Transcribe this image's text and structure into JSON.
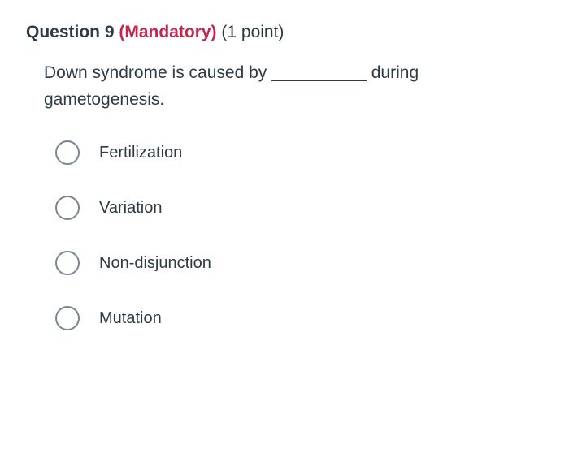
{
  "header": {
    "question_label": "Question 9",
    "mandatory_label": "(Mandatory)",
    "points_label": "(1 point)"
  },
  "question": {
    "text": "Down syndrome is caused by __________ during gametogenesis."
  },
  "options": [
    {
      "label": "Fertilization"
    },
    {
      "label": "Variation"
    },
    {
      "label": "Non-disjunction"
    },
    {
      "label": "Mutation"
    }
  ],
  "styles": {
    "mandatory_color": "#c7254e",
    "text_color": "#2d3b45",
    "radio_border_color": "#7b8690",
    "background_color": "#ffffff",
    "header_fontsize": 21,
    "question_fontsize": 21,
    "option_fontsize": 20,
    "radio_size": 30
  }
}
